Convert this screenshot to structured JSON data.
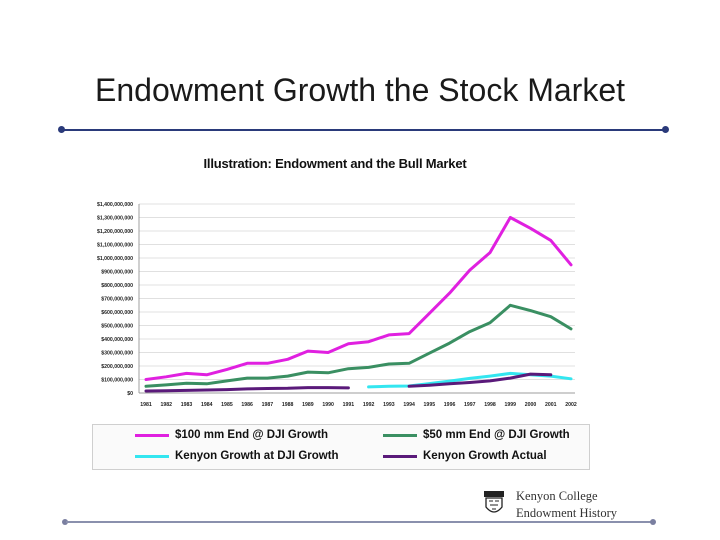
{
  "slide": {
    "title": "Endowment Growth the Stock Market",
    "footer_line1": "Kenyon College",
    "footer_line2": "Endowment History"
  },
  "colors": {
    "accent_rule": "#2a3a7a",
    "series_100mm": "#e020e0",
    "series_50mm": "#3a8f62",
    "series_kenyon_dji": "#33e6f0",
    "series_kenyon_actual": "#5a1a7a"
  },
  "chart_data": {
    "type": "line",
    "title": "Illustration:  Endowment and the Bull Market",
    "xlabel": "",
    "ylabel": "",
    "ylim": [
      0,
      1400000000
    ],
    "y_ticks": [
      0,
      100000000,
      200000000,
      300000000,
      400000000,
      500000000,
      600000000,
      700000000,
      800000000,
      900000000,
      1000000000,
      1100000000,
      1200000000,
      1300000000,
      1400000000
    ],
    "y_tick_labels": [
      "$0",
      "$100,000,000",
      "$200,000,000",
      "$300,000,000",
      "$400,000,000",
      "$500,000,000",
      "$600,000,000",
      "$700,000,000",
      "$800,000,000",
      "$900,000,000",
      "$1,000,000,000",
      "$1,100,000,000",
      "$1,200,000,000",
      "$1,300,000,000",
      "$1,400,000,000"
    ],
    "categories": [
      "1981",
      "1982",
      "1983",
      "1984",
      "1985",
      "1986",
      "1987",
      "1988",
      "1989",
      "1990",
      "1991",
      "1992",
      "1993",
      "1994",
      "1995",
      "1996",
      "1997",
      "1998",
      "1999",
      "2000",
      "2001",
      "2002"
    ],
    "legend_position": "bottom",
    "series": [
      {
        "name": "$100 mm End @ DJI Growth",
        "color": "#e020e0",
        "values": [
          100000000,
          120000000,
          145000000,
          135000000,
          175000000,
          220000000,
          220000000,
          250000000,
          310000000,
          300000000,
          365000000,
          380000000,
          430000000,
          440000000,
          590000000,
          740000000,
          910000000,
          1040000000,
          1300000000,
          1220000000,
          1130000000,
          950000000
        ]
      },
      {
        "name": "$50 mm End @ DJI Growth",
        "color": "#3a8f62",
        "values": [
          50000000,
          60000000,
          72000000,
          68000000,
          90000000,
          110000000,
          110000000,
          125000000,
          155000000,
          150000000,
          180000000,
          190000000,
          215000000,
          220000000,
          295000000,
          370000000,
          455000000,
          520000000,
          650000000,
          610000000,
          565000000,
          475000000
        ]
      },
      {
        "name": "Kenyon Growth at DJI Growth",
        "color": "#33e6f0",
        "values": [
          null,
          null,
          null,
          null,
          null,
          null,
          null,
          null,
          null,
          null,
          null,
          45000000,
          50000000,
          52000000,
          70000000,
          88000000,
          108000000,
          125000000,
          145000000,
          135000000,
          125000000,
          105000000
        ]
      },
      {
        "name": "Kenyon Growth Actual",
        "color": "#5a1a7a",
        "values": [
          15000000,
          17000000,
          19000000,
          22000000,
          25000000,
          30000000,
          33000000,
          35000000,
          40000000,
          40000000,
          38000000,
          null,
          null,
          50000000,
          58000000,
          68000000,
          78000000,
          90000000,
          110000000,
          140000000,
          135000000,
          null
        ]
      }
    ]
  }
}
